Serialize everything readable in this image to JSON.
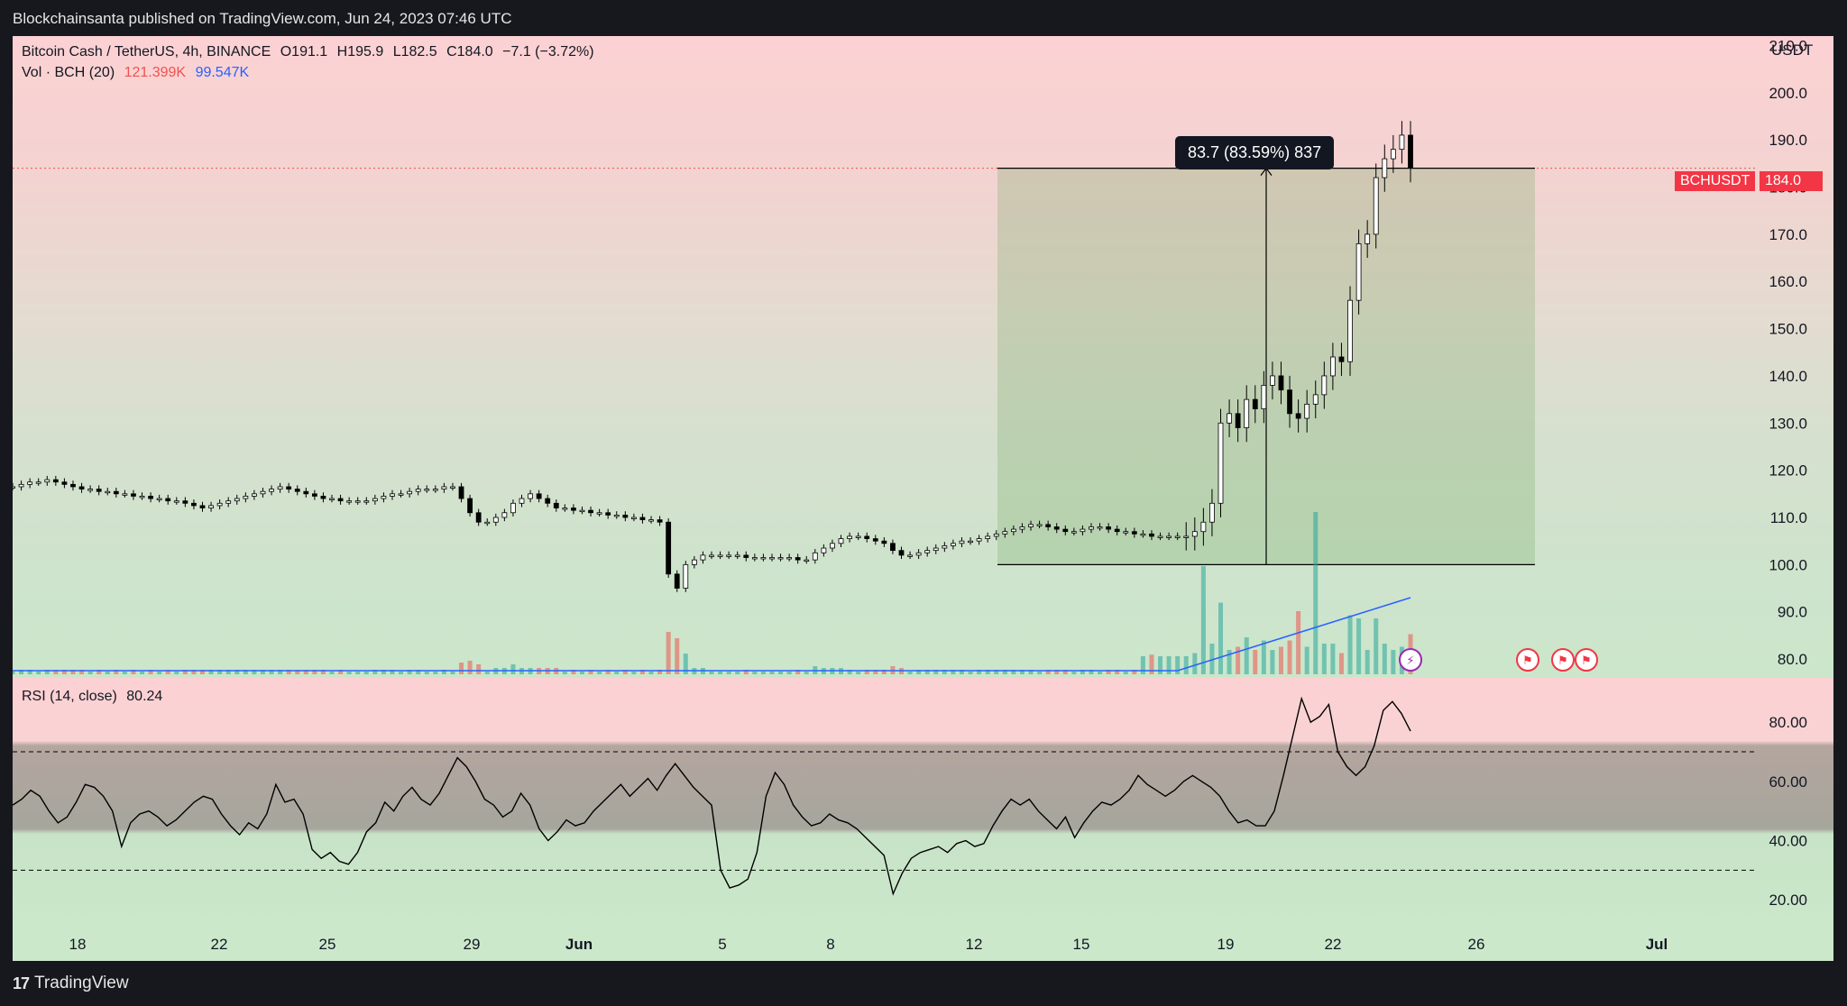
{
  "header": {
    "published": "Blockchainsanta published on TradingView.com, Jun 24, 2023 07:46 UTC"
  },
  "footer": {
    "brand": "TradingView",
    "logo_icon": "tradingview-logo-icon"
  },
  "legend": {
    "title": "Bitcoin Cash / TetherUS, 4h, BINANCE",
    "open": "O191.1",
    "high": "H195.9",
    "low": "L182.5",
    "close": "C184.0",
    "change": "−7.1 (−3.72%)",
    "vol_label": "Vol · BCH (20)",
    "vol_value": "121.399K",
    "vol_ma": "99.547K",
    "rsi_label": "RSI (14, close)",
    "rsi_value": "80.24"
  },
  "axis": {
    "currency": "USDT",
    "price_ticks": [
      "210.0",
      "200.0",
      "190.0",
      "180.0",
      "170.0",
      "160.0",
      "150.0",
      "140.0",
      "130.0",
      "120.0",
      "110.0",
      "100.0",
      "90.0",
      "80.0"
    ],
    "rsi_ticks": [
      "80.00",
      "60.00",
      "40.00",
      "20.00"
    ],
    "time_ticks": [
      "18",
      "22",
      "25",
      "29",
      "Jun",
      "5",
      "8",
      "12",
      "15",
      "19",
      "22",
      "26",
      "Jul"
    ]
  },
  "price_tag": {
    "symbol": "BCHUSDT",
    "value": "184.0"
  },
  "ruler": {
    "label": "83.7 (83.59%) 837"
  },
  "colors": {
    "up": "#ffffff",
    "down": "#000000",
    "vol_up": "#26a69a",
    "vol_down": "#ef5350",
    "vol_ma": "#2962ff",
    "price_line": "#ef5350"
  },
  "events": [
    "lightning-event-icon",
    "us-flag-icon",
    "us-flag-icon",
    "us-flag-icon"
  ],
  "chart_data": [
    {
      "type": "candlestick",
      "title": "Bitcoin Cash / TetherUS, 4h, BINANCE",
      "ylim": [
        76,
        212
      ],
      "x_ticks": [
        "18",
        "22",
        "25",
        "29",
        "Jun",
        "5",
        "8",
        "12",
        "15",
        "19",
        "22",
        "26",
        "Jul"
      ],
      "series": [
        {
          "name": "BCHUSDT",
          "close": [
            116.5,
            117,
            117.5,
            117.5,
            118,
            117.5,
            117,
            116.5,
            116,
            116,
            115.5,
            115.5,
            115,
            115,
            114.5,
            114.5,
            114,
            114,
            113.5,
            113.5,
            113,
            112.5,
            112,
            112.5,
            113,
            113.5,
            114,
            114.5,
            115,
            115.5,
            116,
            116.5,
            116,
            115.5,
            115,
            114.5,
            114,
            114,
            113.5,
            113.5,
            113.5,
            113.5,
            114,
            114.5,
            115,
            115,
            115.5,
            116,
            116,
            116,
            116.5,
            116.5,
            114,
            111,
            109,
            109,
            110,
            111,
            113,
            114,
            115,
            114,
            113,
            112,
            112,
            111.5,
            111.5,
            111,
            111,
            110.5,
            110.5,
            110,
            110,
            109.5,
            109.5,
            109,
            98,
            95,
            100,
            101,
            102,
            102,
            102,
            102,
            102,
            101.5,
            101.5,
            101.5,
            101.5,
            101.5,
            101.5,
            101,
            101,
            102.5,
            103.5,
            104.5,
            105.5,
            106,
            106,
            105.5,
            105,
            104.5,
            103,
            102,
            102,
            102.5,
            103,
            103.5,
            104,
            104.5,
            105,
            105,
            105.5,
            106,
            106.5,
            107,
            107.5,
            108,
            108.5,
            108.5,
            108,
            107.5,
            107,
            107,
            107.5,
            108,
            108,
            107.5,
            107,
            107,
            106.5,
            106.5,
            106,
            106,
            106,
            106,
            106,
            107,
            109,
            113,
            130,
            132,
            129,
            135,
            133,
            138,
            140,
            137,
            132,
            131,
            134,
            136,
            140,
            144,
            143,
            156,
            168,
            170,
            182,
            186,
            188,
            191,
            184
          ],
          "volume_note": "volume spikes near Jun 21 and Jun 23"
        }
      ]
    },
    {
      "type": "line",
      "title": "RSI (14, close)",
      "ylim": [
        10,
        95
      ],
      "series": [
        {
          "name": "RSI",
          "values": [
            52,
            54,
            57,
            55,
            50,
            46,
            48,
            53,
            59,
            58,
            55,
            50,
            38,
            46,
            49,
            50,
            48,
            45,
            47,
            50,
            53,
            55,
            54,
            49,
            45,
            42,
            46,
            44,
            49,
            59,
            53,
            54,
            49,
            37,
            34,
            36,
            33,
            32,
            36,
            43,
            46,
            53,
            50,
            55,
            58,
            54,
            52,
            56,
            62,
            68,
            65,
            60,
            54,
            52,
            48,
            50,
            56,
            52,
            44,
            40,
            43,
            47,
            45,
            46,
            50,
            53,
            56,
            59,
            55,
            58,
            61,
            57,
            62,
            66,
            62,
            58,
            55,
            52,
            30,
            24,
            25,
            27,
            36,
            55,
            63,
            59,
            52,
            48,
            45,
            46,
            49,
            47,
            46,
            44,
            41,
            38,
            35,
            22,
            29,
            34,
            36,
            37,
            38,
            36,
            39,
            40,
            38,
            39,
            45,
            50,
            54,
            52,
            54,
            50,
            47,
            44,
            48,
            41,
            46,
            50,
            53,
            52,
            54,
            57,
            62,
            59,
            57,
            55,
            57,
            60,
            62,
            60,
            58,
            55,
            50,
            46,
            47,
            45,
            45,
            50,
            62,
            75,
            88,
            80,
            82,
            86,
            70,
            65,
            62,
            65,
            72,
            84,
            87,
            83,
            77
          ],
          "range_lines": [
            70,
            30
          ]
        }
      ]
    }
  ]
}
